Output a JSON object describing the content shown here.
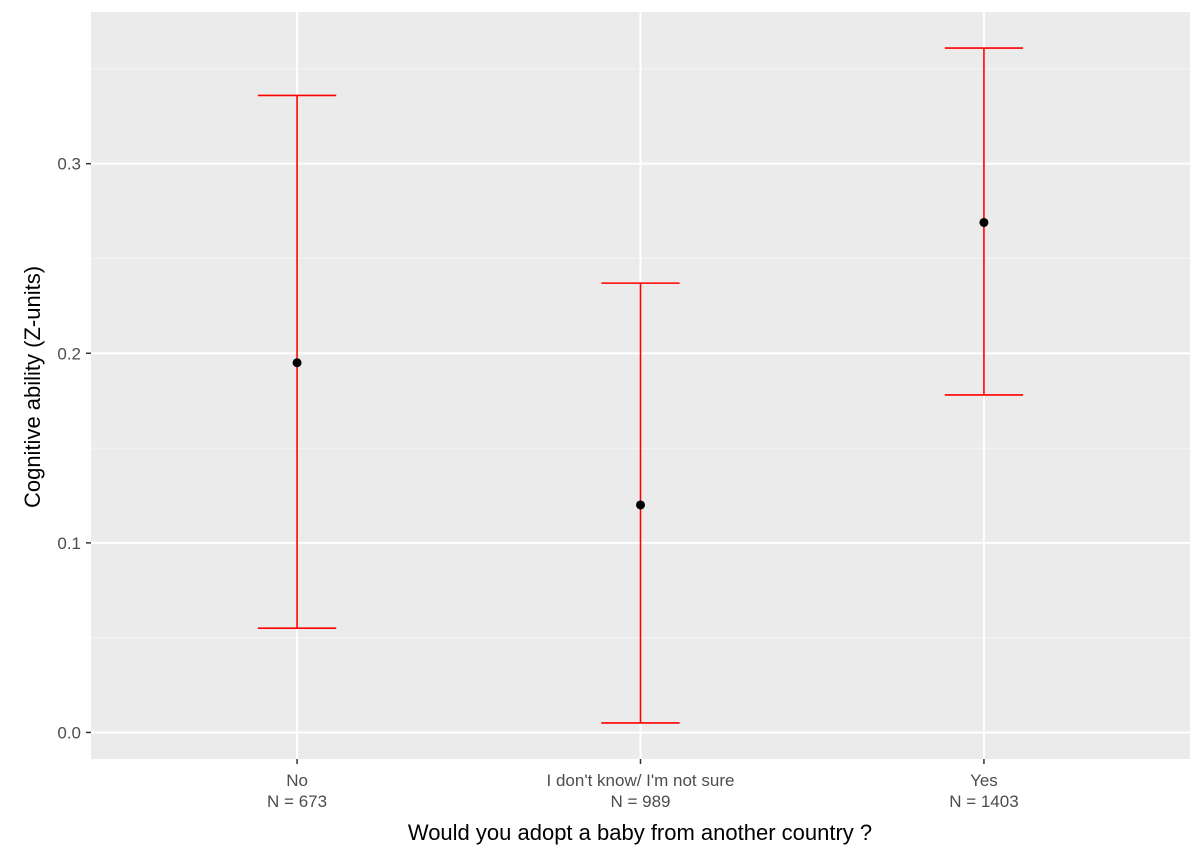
{
  "chart_data": {
    "type": "errorbar",
    "title": "",
    "xlabel": "Would you adopt a baby from another country ?",
    "ylabel": "Cognitive ability (Z-units)",
    "ylim": [
      -0.014,
      0.38
    ],
    "y_ticks": [
      0.0,
      0.1,
      0.2,
      0.3
    ],
    "y_tick_labels": [
      "0.0",
      "0.1",
      "0.2",
      "0.3"
    ],
    "y_minor_ticks": [
      0.05,
      0.15,
      0.25,
      0.35
    ],
    "grid": true,
    "legend": "none",
    "categories": [
      "No",
      "I don't know/ I'm not sure",
      "Yes"
    ],
    "category_counts": [
      "N = 673",
      "N = 989",
      "N = 1403"
    ],
    "values": [
      0.195,
      0.12,
      0.269
    ],
    "lower": [
      0.055,
      0.005,
      0.178
    ],
    "upper": [
      0.336,
      0.237,
      0.361
    ],
    "colors": {
      "panel_background": "#ebebeb",
      "grid_major": "#ffffff",
      "grid_minor": "#f5f5f5",
      "error_bar": "#ff0000",
      "point": "#000000",
      "tick_mark": "#333333"
    }
  }
}
